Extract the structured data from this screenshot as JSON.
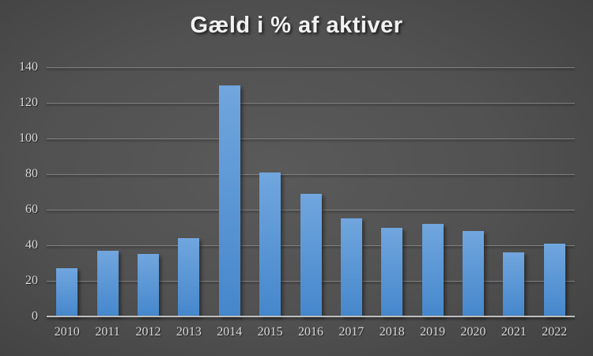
{
  "title": "Gæld i % af aktiver",
  "chart_data": {
    "type": "bar",
    "title": "Gæld i % af aktiver",
    "categories": [
      "2010",
      "2011",
      "2012",
      "2013",
      "2014",
      "2015",
      "2016",
      "2017",
      "2018",
      "2019",
      "2020",
      "2021",
      "2022"
    ],
    "values": [
      27,
      37,
      35,
      44,
      130,
      81,
      69,
      55,
      50,
      52,
      48,
      36,
      41
    ],
    "xlabel": "",
    "ylabel": "",
    "ylim": [
      0,
      140
    ],
    "yticks": [
      0,
      20,
      40,
      60,
      80,
      100,
      120,
      140
    ],
    "grid": true,
    "legend": false,
    "background_style": "dark-gradient"
  },
  "colors": {
    "bar_top": "#71a6de",
    "bar_bottom": "#4587cc",
    "gridline": "#7e7e7e",
    "axis_line": "#bdbdbd",
    "tick_label": "#d9d9d9",
    "title_text": "#f2f2f2"
  }
}
